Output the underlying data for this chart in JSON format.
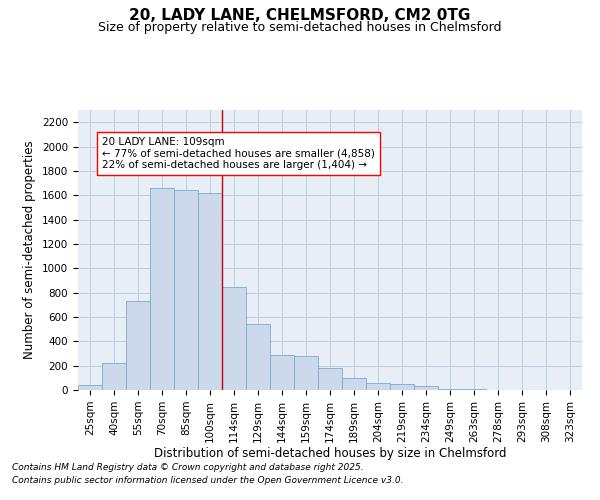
{
  "title_line1": "20, LADY LANE, CHELMSFORD, CM2 0TG",
  "title_line2": "Size of property relative to semi-detached houses in Chelmsford",
  "xlabel": "Distribution of semi-detached houses by size in Chelmsford",
  "ylabel": "Number of semi-detached properties",
  "categories": [
    "25sqm",
    "40sqm",
    "55sqm",
    "70sqm",
    "85sqm",
    "100sqm",
    "114sqm",
    "129sqm",
    "144sqm",
    "159sqm",
    "174sqm",
    "189sqm",
    "204sqm",
    "219sqm",
    "234sqm",
    "249sqm",
    "263sqm",
    "278sqm",
    "293sqm",
    "308sqm",
    "323sqm"
  ],
  "values": [
    40,
    220,
    730,
    1660,
    1640,
    1620,
    850,
    540,
    290,
    280,
    180,
    100,
    60,
    50,
    30,
    10,
    5,
    0,
    0,
    0,
    0
  ],
  "bar_color": "#ccd9ea",
  "bar_edge_color": "#7aaacf",
  "vline_x": 6.0,
  "vline_color": "#cc0000",
  "annotation_text": "20 LADY LANE: 109sqm\n← 77% of semi-detached houses are smaller (4,858)\n22% of semi-detached houses are larger (1,404) →",
  "annotation_box_color": "white",
  "annotation_box_edge_color": "red",
  "ylim": [
    0,
    2300
  ],
  "yticks": [
    0,
    200,
    400,
    600,
    800,
    1000,
    1200,
    1400,
    1600,
    1800,
    2000,
    2200
  ],
  "grid_color": "#b8cfe0",
  "background_color": "#e8eef5",
  "footer_line1": "Contains HM Land Registry data © Crown copyright and database right 2025.",
  "footer_line2": "Contains public sector information licensed under the Open Government Licence v3.0.",
  "title_fontsize": 11,
  "subtitle_fontsize": 9,
  "annotation_fontsize": 7.5,
  "axis_label_fontsize": 8.5,
  "tick_fontsize": 7.5,
  "footer_fontsize": 6.5
}
